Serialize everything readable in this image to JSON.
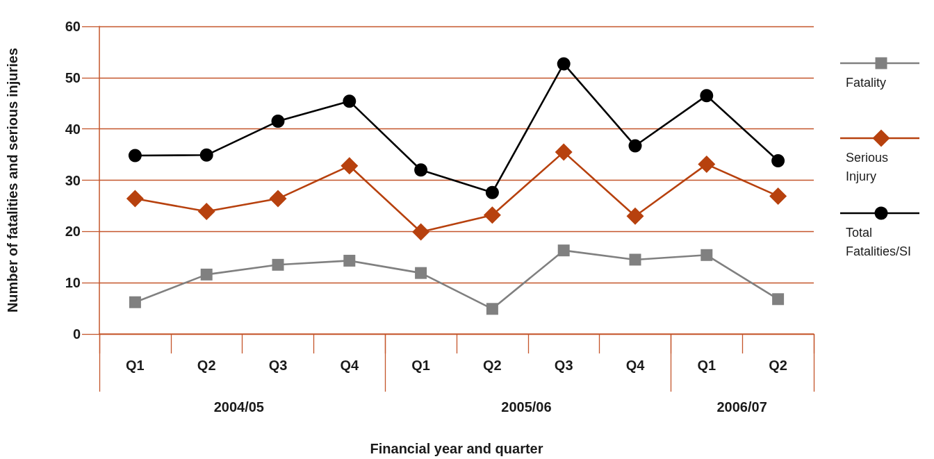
{
  "chart_data": {
    "type": "line",
    "xlabel": "Financial year and quarter",
    "ylabel": "Number of fatalities and serious injuries",
    "categories": [
      "Q1",
      "Q2",
      "Q3",
      "Q4",
      "Q1",
      "Q2",
      "Q3",
      "Q4",
      "Q1",
      "Q2"
    ],
    "annotations": [
      "2004/05",
      "2005/06",
      "2006/07"
    ],
    "series": [
      {
        "name": "Fatality",
        "color": "#808080",
        "marker": "square",
        "values": [
          6.2,
          11.6,
          13.5,
          14.3,
          11.9,
          4.9,
          16.3,
          14.5,
          15.4,
          6.8
        ]
      },
      {
        "name": "Serious Injury",
        "color": "#b7410e",
        "marker": "diamond",
        "values": [
          26.4,
          23.9,
          26.4,
          32.8,
          19.9,
          23.2,
          35.5,
          23.0,
          33.1,
          26.9
        ]
      },
      {
        "name": "Total Fatalities/SI",
        "color": "#000000",
        "marker": "circle",
        "values": [
          34.8,
          34.9,
          41.5,
          45.4,
          32.0,
          27.6,
          52.7,
          36.7,
          46.5,
          33.8
        ]
      }
    ],
    "ylim": [
      0,
      60
    ],
    "yticks": [
      0,
      10,
      20,
      30,
      40,
      50,
      60
    ],
    "grid": "y",
    "legend": "right",
    "line_style": "solid"
  }
}
